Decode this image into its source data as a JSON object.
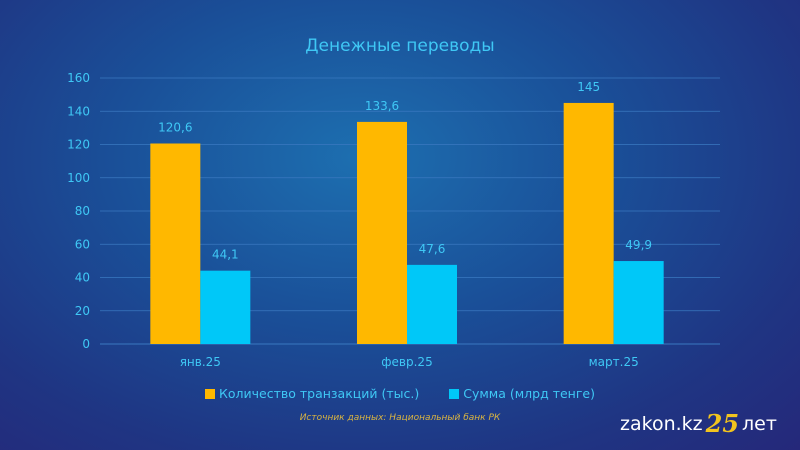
{
  "chart_data": {
    "type": "bar",
    "title": "Денежные переводы",
    "categories": [
      "янв.25",
      "февр.25",
      "март.25"
    ],
    "series": [
      {
        "name": "Количество транзакций (тыс.)",
        "values": [
          120.6,
          133.6,
          145
        ],
        "labels": [
          "120,6",
          "133,6",
          "145"
        ],
        "color": "#ffb800"
      },
      {
        "name": "Сумма (млрд тенге)",
        "values": [
          44.1,
          47.6,
          49.9
        ],
        "labels": [
          "44,1",
          "47,6",
          "49,9"
        ],
        "color": "#00c8f8"
      }
    ],
    "ylim": [
      0,
      160
    ],
    "yticks": [
      0,
      20,
      40,
      60,
      80,
      100,
      120,
      140,
      160
    ],
    "grid": true,
    "legend": "bottom",
    "xlabel": "",
    "ylabel": ""
  },
  "source": "Источник данных: Национальный банк РК",
  "logo": {
    "text": "zakon.kz",
    "number": "25",
    "suffix": "лет"
  }
}
